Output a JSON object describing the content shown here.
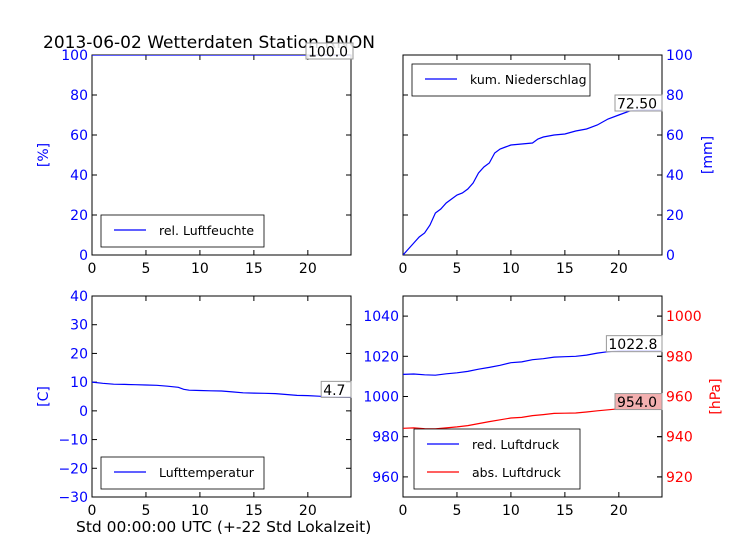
{
  "title": "2013-06-02 Wetterdaten Station RNON",
  "xlabel": "Std 00:00:00 UTC (+-22 Std Lokalzeit)",
  "colors": {
    "blue": "#0000ff",
    "red": "#ff0000",
    "black": "#000000",
    "box_red": "#f3b0b0"
  },
  "chart_data": [
    {
      "type": "line",
      "panel": "top-left",
      "ylabel": "[%]",
      "xlim": [
        0,
        24
      ],
      "ylim": [
        0,
        100
      ],
      "xticks": [
        0,
        5,
        10,
        15,
        20
      ],
      "yticks": [
        0,
        20,
        40,
        60,
        80,
        100
      ],
      "legend": "lower-left",
      "series": [
        {
          "name": "rel. Luftfeuchte",
          "color": "#0000ff",
          "x": [
            0,
            5,
            8,
            9,
            10,
            15,
            20,
            24
          ],
          "y": [
            100,
            100,
            100,
            100,
            100,
            100,
            100,
            100
          ]
        }
      ],
      "value_label": "100.0"
    },
    {
      "type": "line",
      "panel": "top-right",
      "ylabel": "[mm]",
      "xlim": [
        0,
        24
      ],
      "ylim": [
        0,
        100
      ],
      "xticks": [
        0,
        5,
        10,
        15,
        20
      ],
      "yticks": [
        0,
        20,
        40,
        60,
        80,
        100
      ],
      "y_axis_side": "right",
      "legend": "upper-left",
      "series": [
        {
          "name": "kum. Niederschlag",
          "color": "#0000ff",
          "x": [
            0,
            0.5,
            1,
            1.5,
            2,
            2.5,
            3,
            3.5,
            4,
            4.5,
            5,
            5.5,
            6,
            6.5,
            7,
            7.5,
            8,
            8.5,
            9,
            9.5,
            10,
            11,
            12,
            12.5,
            13,
            14,
            15,
            16,
            17,
            18,
            19,
            20,
            21,
            22,
            23,
            24
          ],
          "y": [
            0,
            3,
            6,
            9,
            11,
            15,
            21,
            23,
            26,
            28,
            30,
            31,
            33,
            36,
            41,
            44,
            46,
            51,
            53,
            54,
            55,
            55.5,
            56,
            58,
            59,
            60,
            60.5,
            62,
            63,
            65,
            68,
            70,
            72,
            72.5,
            72.5,
            72.5
          ]
        }
      ],
      "value_label": "72.50"
    },
    {
      "type": "line",
      "panel": "bottom-left",
      "ylabel": "[C]",
      "xlim": [
        0,
        24
      ],
      "ylim": [
        -30,
        40
      ],
      "xticks": [
        0,
        5,
        10,
        15,
        20
      ],
      "yticks": [
        -30,
        -20,
        -10,
        0,
        10,
        20,
        30,
        40
      ],
      "legend": "lower-left",
      "series": [
        {
          "name": "Lufttemperatur",
          "color": "#0000ff",
          "x": [
            0,
            1,
            2,
            3,
            4,
            5,
            6,
            7,
            8,
            8.5,
            9,
            10,
            11,
            12,
            13,
            14,
            15,
            16,
            17,
            18,
            19,
            20,
            21,
            22,
            23,
            24
          ],
          "y": [
            10,
            9.6,
            9.3,
            9.2,
            9.1,
            9.0,
            8.9,
            8.6,
            8.2,
            7.5,
            7.2,
            7.1,
            7.0,
            6.9,
            6.6,
            6.3,
            6.2,
            6.1,
            6.0,
            5.7,
            5.4,
            5.3,
            5.1,
            4.9,
            4.8,
            4.7
          ]
        }
      ],
      "value_label": "4.7"
    },
    {
      "type": "line",
      "panel": "bottom-right",
      "xlim": [
        0,
        24
      ],
      "ylim": [
        950,
        1050
      ],
      "xticks": [
        0,
        5,
        10,
        15,
        20
      ],
      "yticks": [
        960,
        980,
        1000,
        1020,
        1040
      ],
      "y2label": "[hPa]",
      "y2lim": [
        910,
        1010
      ],
      "y2ticks": [
        920,
        940,
        960,
        980,
        1000
      ],
      "legend": "lower-left",
      "series": [
        {
          "name": "red. Luftdruck",
          "color": "#0000ff",
          "axis": "left",
          "x": [
            0,
            1,
            2,
            3,
            4,
            5,
            6,
            7,
            8,
            9,
            10,
            11,
            12,
            13,
            14,
            15,
            16,
            17,
            18,
            19,
            20,
            21,
            22,
            23,
            24
          ],
          "y": [
            1011,
            1011.2,
            1010.8,
            1010.6,
            1011.3,
            1011.8,
            1012.5,
            1013.6,
            1014.5,
            1015.5,
            1016.8,
            1017.2,
            1018.3,
            1018.8,
            1019.6,
            1019.8,
            1020,
            1020.6,
            1021.6,
            1022.3,
            1022.7,
            1022.8,
            1022.8,
            1022.8,
            1022.8
          ]
        },
        {
          "name": "abs. Luftdruck",
          "color": "#ff0000",
          "axis": "right",
          "x": [
            0,
            1,
            2,
            3,
            4,
            5,
            6,
            7,
            8,
            9,
            10,
            11,
            12,
            13,
            14,
            15,
            16,
            17,
            18,
            19,
            20,
            21,
            22,
            23,
            24
          ],
          "y": [
            944.2,
            944.4,
            944,
            943.9,
            944.4,
            944.9,
            945.5,
            946.5,
            947.5,
            948.4,
            949.3,
            949.6,
            950.5,
            951.0,
            951.6,
            951.7,
            951.8,
            952.3,
            952.9,
            953.4,
            953.9,
            954.0,
            954.0,
            954.0,
            954.0
          ]
        }
      ],
      "value_labels": [
        "1022.8",
        "954.0"
      ]
    }
  ]
}
